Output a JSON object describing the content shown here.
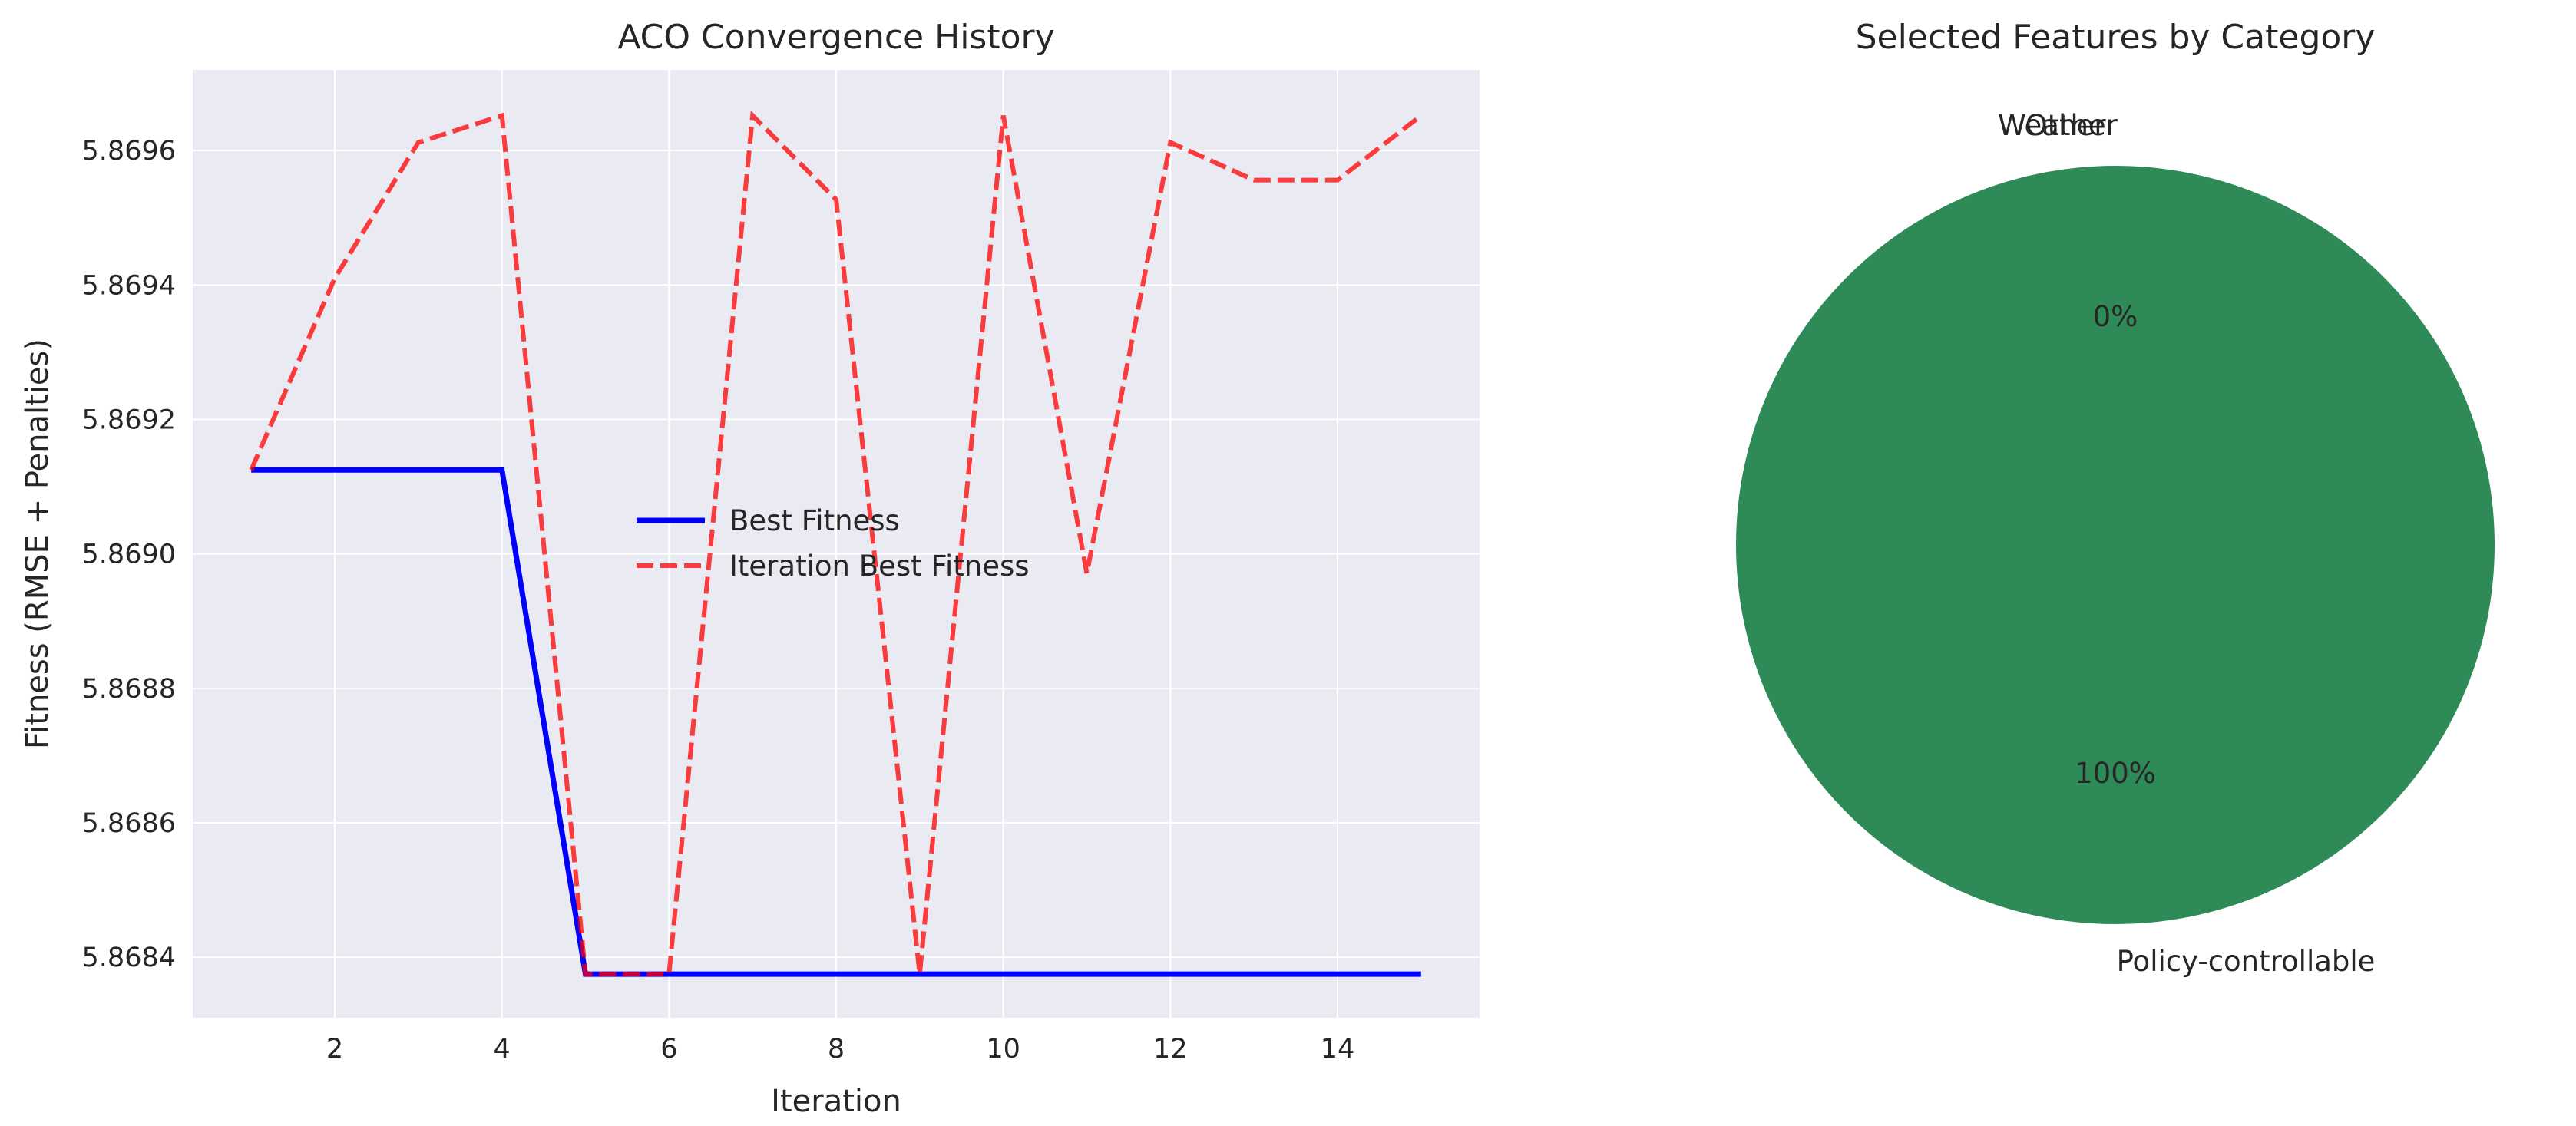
{
  "chart_data": [
    {
      "type": "line",
      "title": "ACO Convergence History",
      "xlabel": "Iteration",
      "ylabel": "Fitness (RMSE + Penalties)",
      "xlim": [
        0.3,
        15.7
      ],
      "ylim": [
        5.86831,
        5.86972
      ],
      "xticks": [
        2,
        4,
        6,
        8,
        10,
        12,
        14
      ],
      "yticks": [
        5.8684,
        5.8686,
        5.8688,
        5.869,
        5.8692,
        5.8694,
        5.8696
      ],
      "ytick_labels": [
        "5.8684",
        "5.8686",
        "5.8688",
        "5.8690",
        "5.8692",
        "5.8694",
        "5.8696"
      ],
      "grid": true,
      "legend_position": "center",
      "x": [
        1,
        2,
        3,
        4,
        5,
        6,
        7,
        8,
        9,
        10,
        11,
        12,
        13,
        14,
        15
      ],
      "series": [
        {
          "name": "Best Fitness",
          "color": "#0000ff",
          "style": "solid",
          "values": [
            5.869125,
            5.869125,
            5.869125,
            5.869125,
            5.868375,
            5.868375,
            5.868375,
            5.868375,
            5.868375,
            5.868375,
            5.868375,
            5.868375,
            5.868375,
            5.868375,
            5.868375
          ]
        },
        {
          "name": "Iteration Best Fitness",
          "color": "#ff0000",
          "style": "dashed",
          "values": [
            5.869125,
            5.86941,
            5.869612,
            5.869652,
            5.868375,
            5.868375,
            5.869652,
            5.869527,
            5.868375,
            5.869652,
            5.868971,
            5.869612,
            5.869556,
            5.869556,
            5.869652
          ]
        }
      ]
    },
    {
      "type": "pie",
      "title": "Selected Features by Category",
      "start_angle_deg": 90,
      "slices": [
        {
          "label": "Weather",
          "value": 0,
          "color": "#ffffff"
        },
        {
          "label": "Other",
          "value": 0,
          "color": "#ffffff"
        },
        {
          "label": "Policy-controllable",
          "value": 100,
          "color": "#2e8b57"
        }
      ],
      "pct_labels": [
        {
          "text": "0%"
        },
        {
          "text": "100%"
        }
      ]
    }
  ]
}
